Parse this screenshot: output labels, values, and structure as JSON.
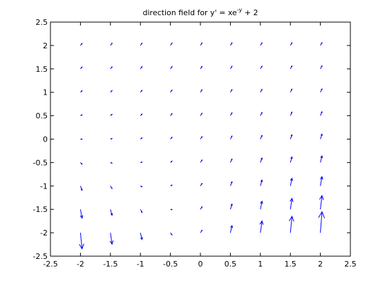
{
  "chart_data": {
    "type": "quiver",
    "title_main": "direction field for y' = xe",
    "title_sup": "-y",
    "title_tail": " + 2",
    "xlim": [
      -2.5,
      2.5
    ],
    "ylim": [
      -2.5,
      2.5
    ],
    "x_ticks": [
      "-2.5",
      "-2",
      "-1.5",
      "-1",
      "-0.5",
      "0",
      "0.5",
      "1",
      "1.5",
      "2",
      "2.5"
    ],
    "y_ticks": [
      "2.5",
      "2",
      "1.5",
      "1",
      "0.5",
      "0",
      "-0.5",
      "-1",
      "-1.5",
      "-2",
      "-2.5"
    ],
    "grid": false,
    "arrow_color": "#0000ff",
    "x": [
      -2,
      -1.5,
      -1,
      -0.5,
      0,
      0.5,
      1,
      1.5,
      2
    ],
    "y": [
      -2,
      -1.5,
      -1,
      -0.5,
      0,
      0.5,
      1,
      1.5,
      2
    ],
    "equation": "dy/dx = x*exp(-y) + 2"
  }
}
